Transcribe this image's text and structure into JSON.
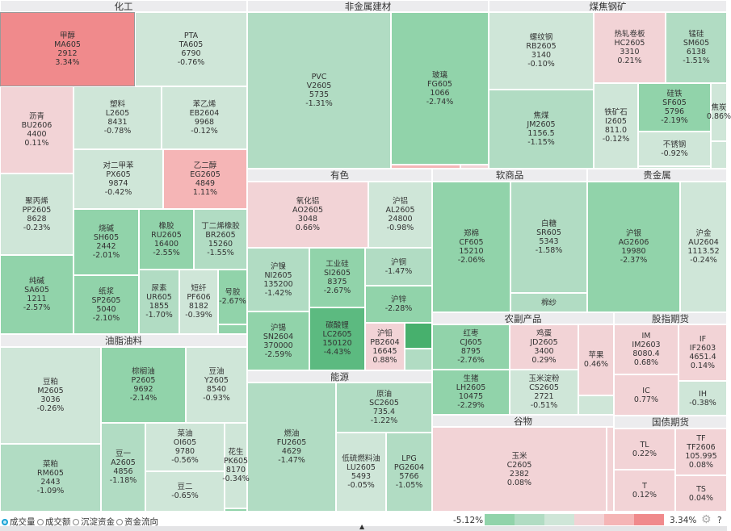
{
  "colors": {
    "up_strong": "#f08a8c",
    "up_mid": "#f5b5b6",
    "up_light": "#f2d3d6",
    "down_light": "#cfe6d8",
    "down_mid": "#b1dcc3",
    "down_strong": "#91d3aa",
    "down_deep": "#5cba80",
    "down_deepest": "#47b06d",
    "header_bg": "#ececee",
    "radio_accent": "#1aa3d6"
  },
  "groups": [
    {
      "title": "化工",
      "tiles": [
        {
          "name": "甲醇",
          "code": "MA605",
          "price": "2912",
          "change": "3.34%"
        },
        {
          "name": "PTA",
          "code": "TA605",
          "price": "6790",
          "change": "-0.76%"
        },
        {
          "name": "沥青",
          "code": "BU2606",
          "price": "4400",
          "change": "0.11%"
        },
        {
          "name": "塑料",
          "code": "L2605",
          "price": "8431",
          "change": "-0.78%"
        },
        {
          "name": "苯乙烯",
          "code": "EB2604",
          "price": "9968",
          "change": "-0.12%"
        },
        {
          "name": "聚丙烯",
          "code": "PP2605",
          "price": "8628",
          "change": "-0.23%"
        },
        {
          "name": "对二甲苯",
          "code": "PX605",
          "price": "9874",
          "change": "-0.42%"
        },
        {
          "name": "乙二醇",
          "code": "EG2605",
          "price": "4849",
          "change": "1.11%"
        },
        {
          "name": "纯碱",
          "code": "SA605",
          "price": "1211",
          "change": "-2.57%"
        },
        {
          "name": "烧碱",
          "code": "SH605",
          "price": "2442",
          "change": "-2.01%"
        },
        {
          "name": "橡胶",
          "code": "RU2605",
          "price": "16400",
          "change": "-2.55%"
        },
        {
          "name": "丁二烯橡胶",
          "code": "BR2605",
          "price": "15260",
          "change": "-1.55%"
        },
        {
          "name": "纸浆",
          "code": "SP2605",
          "price": "5040",
          "change": "-2.10%"
        },
        {
          "name": "尿素",
          "code": "UR605",
          "price": "1855",
          "change": "-1.70%"
        },
        {
          "name": "短纤",
          "code": "PF606",
          "price": "8182",
          "change": "-0.39%"
        },
        {
          "name": "号胶",
          "change": "-2.67%"
        },
        {
          "color": "down_strong"
        }
      ]
    },
    {
      "title": "非金属建材",
      "tiles": [
        {
          "name": "PVC",
          "code": "V2605",
          "price": "5735",
          "change": "-1.31%"
        },
        {
          "name": "玻璃",
          "code": "FG605",
          "price": "1066",
          "change": "-2.74%"
        },
        {
          "color": "up_mid"
        },
        {
          "color": "up_light"
        }
      ]
    },
    {
      "title": "煤焦钢矿",
      "tiles": [
        {
          "name": "螺纹钢",
          "code": "RB2605",
          "price": "3140",
          "change": "-0.10%"
        },
        {
          "name": "焦煤",
          "code": "JM2605",
          "price": "1156.5",
          "change": "-1.15%"
        },
        {
          "name": "热轧卷板",
          "code": "HC2605",
          "price": "3310",
          "change": "0.21%"
        },
        {
          "name": "锰硅",
          "code": "SM605",
          "price": "6138",
          "change": "-1.51%"
        },
        {
          "name": "铁矿石",
          "code": "I2605",
          "price": "811.0",
          "change": "-0.12%"
        },
        {
          "name": "硅铁",
          "code": "SF605",
          "price": "5796",
          "change": "-2.19%"
        },
        {
          "name": "不锈钢",
          "change": "-0.92%"
        },
        {
          "color": "down_light"
        },
        {
          "name": "焦炭",
          "change": "0.86%",
          "color": "down_light"
        },
        {
          "color": "down_light"
        }
      ]
    },
    {
      "title": "有色",
      "tiles": [
        {
          "name": "氧化铝",
          "code": "AO2605",
          "price": "3048",
          "change": "0.66%"
        },
        {
          "name": "沪铝",
          "code": "AL2605",
          "price": "24800",
          "change": "-0.98%"
        },
        {
          "name": "沪镍",
          "code": "NI2605",
          "price": "135200",
          "change": "-1.42%"
        },
        {
          "name": "工业硅",
          "code": "SI2605",
          "price": "8375",
          "change": "-2.67%"
        },
        {
          "name": "沪铜",
          "change": "-1.47%"
        },
        {
          "name": "沪锌",
          "change": "-2.28%"
        },
        {
          "name": "沪锡",
          "code": "SN2604",
          "price": "370000",
          "change": "-2.59%"
        },
        {
          "name": "碳酸锂",
          "code": "LC2605",
          "price": "150120",
          "change": "-4.43%"
        },
        {
          "name": "沪铅",
          "code": "PB2604",
          "price": "16645",
          "change": "0.88%"
        },
        {
          "color": "down_deepest"
        },
        {
          "color": "down_mid"
        }
      ]
    },
    {
      "title": "软商品",
      "tiles": [
        {
          "name": "郑棉",
          "code": "CF605",
          "price": "15210",
          "change": "-2.06%"
        },
        {
          "name": "白糖",
          "code": "SR605",
          "price": "5343",
          "change": "-1.58%"
        },
        {
          "name": "棉纱",
          "color": "down_mid"
        }
      ]
    },
    {
      "title": "贵金属",
      "tiles": [
        {
          "name": "沪银",
          "code": "AG2606",
          "price": "19980",
          "change": "-2.37%"
        },
        {
          "name": "沪金",
          "code": "AU2604",
          "price": "1113.52",
          "change": "-0.24%"
        }
      ]
    },
    {
      "title": "农副产品",
      "tiles": [
        {
          "name": "红枣",
          "code": "CJ605",
          "price": "8795",
          "change": "-2.76%"
        },
        {
          "name": "鸡蛋",
          "code": "JD2605",
          "price": "3400",
          "change": "0.29%"
        },
        {
          "name": "苹果",
          "change": "0.46%"
        },
        {
          "name": "生猪",
          "code": "LH2605",
          "price": "10475",
          "change": "-2.29%"
        },
        {
          "name": "玉米淀粉",
          "code": "CS2605",
          "price": "2721",
          "change": "-0.51%"
        },
        {
          "color": "down_light"
        }
      ]
    },
    {
      "title": "股指期货",
      "tiles": [
        {
          "name": "IM",
          "code": "IM2603",
          "price": "8080.4",
          "change": "0.68%"
        },
        {
          "name": "IF",
          "code": "IF2603",
          "price": "4651.4",
          "change": "0.14%"
        },
        {
          "name": "IC",
          "change": "0.77%"
        },
        {
          "name": "IH",
          "change": "-0.38%"
        }
      ]
    },
    {
      "title": "谷物",
      "tiles": [
        {
          "name": "玉米",
          "code": "C2605",
          "price": "2382",
          "change": "0.08%"
        },
        {
          "color": "up_light"
        }
      ]
    },
    {
      "title": "国债期货",
      "tiles": [
        {
          "name": "TL",
          "change": "0.22%"
        },
        {
          "name": "TF",
          "code": "TF2606",
          "price": "105.995",
          "change": "0.08%"
        },
        {
          "name": "T",
          "change": "0.12%"
        },
        {
          "name": "TS",
          "change": "0.04%"
        }
      ]
    },
    {
      "title": "能源",
      "tiles": [
        {
          "name": "燃油",
          "code": "FU2605",
          "price": "4629",
          "change": "-1.47%"
        },
        {
          "name": "原油",
          "code": "SC2605",
          "price": "735.4",
          "change": "-1.22%"
        },
        {
          "name": "低硫燃料油",
          "code": "LU2605",
          "price": "5493",
          "change": "-0.05%"
        },
        {
          "name": "LPG",
          "code": "PG2604",
          "price": "5766",
          "change": "-1.05%"
        }
      ]
    },
    {
      "title": "油脂油料",
      "tiles": [
        {
          "name": "豆粕",
          "code": "M2605",
          "price": "3036",
          "change": "-0.26%"
        },
        {
          "name": "菜粕",
          "code": "RM605",
          "price": "2443",
          "change": "-1.09%"
        },
        {
          "name": "棕榈油",
          "code": "P2605",
          "price": "9692",
          "change": "-2.14%"
        },
        {
          "name": "豆油",
          "code": "Y2605",
          "price": "8540",
          "change": "-0.93%"
        },
        {
          "name": "豆一",
          "code": "A2605",
          "price": "4856",
          "change": "-1.18%"
        },
        {
          "name": "菜油",
          "code": "OI605",
          "price": "9780",
          "change": "-0.56%"
        },
        {
          "name": "豆二",
          "change": "-0.65%"
        },
        {
          "name": "花生",
          "code": "PK605",
          "price": "8170",
          "change": "-0.34%"
        },
        {
          "color": "down_strong"
        }
      ]
    }
  ],
  "footer": {
    "metrics": [
      {
        "label": "成交量",
        "selected": true
      },
      {
        "label": "成交额",
        "selected": false
      },
      {
        "label": "沉淀资金",
        "selected": false
      },
      {
        "label": "资金流向",
        "selected": false
      }
    ],
    "legend_min": "-5.12%",
    "legend_max": "3.34%",
    "legend_colors": [
      "#91d3aa",
      "#b1dcc3",
      "#cfe6d8",
      "#f2d3d6",
      "#f5b5b6",
      "#f08a8c"
    ],
    "settings_icon": "gear-icon",
    "help_label": "?"
  }
}
